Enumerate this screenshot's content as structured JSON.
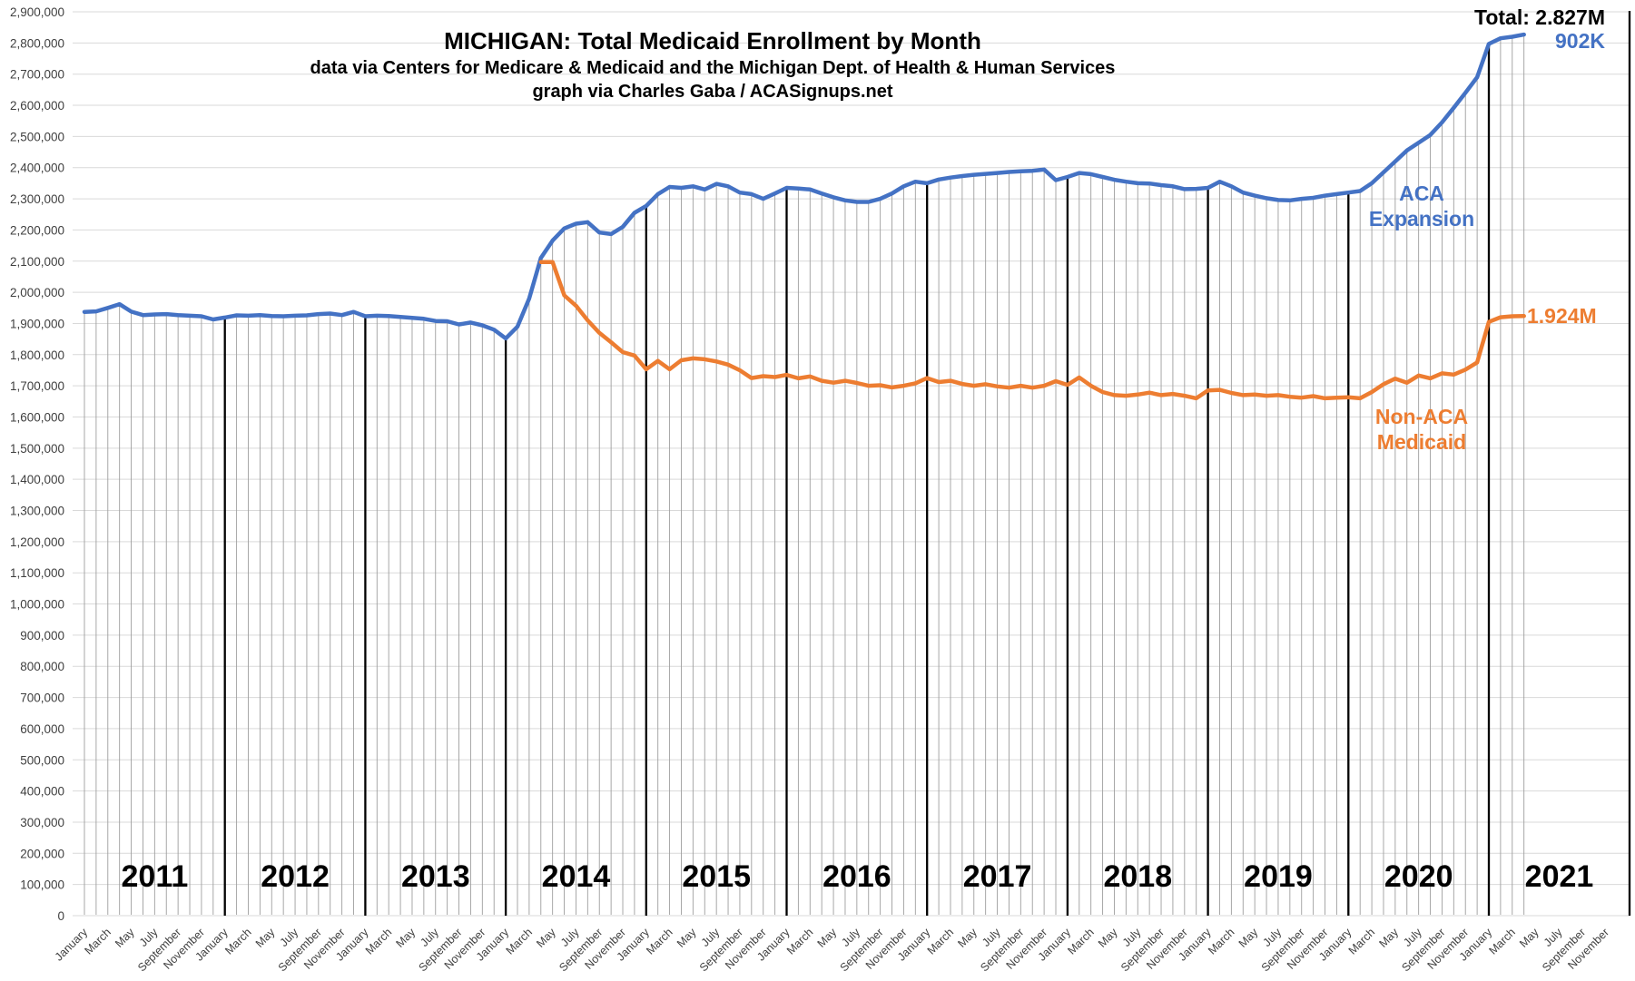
{
  "header": {
    "title": "MICHIGAN: Total Medicaid Enrollment by Month",
    "subtitle1": "data via Centers for Medicare & Medicaid and the Michigan Dept. of Health & Human Services",
    "subtitle2": "graph via Charles Gaba / ACASignups.net"
  },
  "annotations": {
    "total": "Total: 2.827M",
    "expansion_value": "902K",
    "aca_line1": "ACA",
    "aca_line2": "Expansion",
    "nonaca_value": "1.924M",
    "nonaca_line1": "Non-ACA",
    "nonaca_line2": "Medicaid"
  },
  "colors": {
    "total_line": "#4472C4",
    "nonaca_line": "#ED7D31",
    "h_gridline": "#d9d9d9",
    "month_dropline": "#9e9e9e",
    "year_separator": "#000000",
    "axis_label": "#3f3f3f",
    "year_label": "#000000"
  },
  "chart_data": {
    "type": "line",
    "title": "MICHIGAN: Total Medicaid Enrollment by Month",
    "xlabel": "",
    "ylabel": "",
    "x_start": "January 2011",
    "x_end_of_data": "April 2021",
    "months_total": 124,
    "ylim": [
      0,
      2900000
    ],
    "y_tick_step": 100000,
    "grid": true,
    "x_tick_step_months": 2,
    "x_tick_labels": [
      "January",
      "March",
      "May",
      "July",
      "September",
      "November",
      "January",
      "March",
      "May",
      "July",
      "September",
      "November",
      "January",
      "March",
      "May",
      "July",
      "September",
      "November",
      "January",
      "March",
      "May",
      "July",
      "September",
      "November",
      "January",
      "March",
      "May",
      "July",
      "September",
      "November",
      "January",
      "March",
      "May",
      "July",
      "September",
      "November",
      "January",
      "March",
      "May",
      "July",
      "September",
      "November",
      "January",
      "March",
      "May",
      "July",
      "September",
      "November",
      "January",
      "March",
      "May",
      "July",
      "September",
      "November",
      "January",
      "March",
      "May",
      "July",
      "September",
      "November",
      "January",
      "March",
      "May",
      "July",
      "September",
      "November"
    ],
    "year_labels": [
      "2011",
      "2012",
      "2013",
      "2014",
      "2015",
      "2016",
      "2017",
      "2018",
      "2019",
      "2020",
      "2021"
    ],
    "series": [
      {
        "name": "Total Medicaid (incl. ACA Expansion)",
        "label_line1": "ACA",
        "label_line2": "Expansion",
        "color": "#4472C4",
        "values": [
          1937000,
          1939000,
          1950000,
          1962000,
          1938000,
          1927000,
          1929000,
          1930000,
          1927000,
          1925000,
          1923000,
          1913000,
          1919000,
          1926000,
          1925000,
          1927000,
          1924000,
          1923000,
          1925000,
          1926000,
          1930000,
          1932000,
          1927000,
          1937000,
          1923000,
          1925000,
          1924000,
          1921000,
          1918000,
          1915000,
          1908000,
          1907000,
          1897000,
          1903000,
          1894000,
          1880000,
          1852000,
          1890000,
          1980000,
          2110000,
          2166000,
          2205000,
          2220000,
          2225000,
          2192000,
          2187000,
          2210000,
          2255000,
          2277000,
          2315000,
          2338000,
          2335000,
          2340000,
          2330000,
          2348000,
          2340000,
          2320000,
          2315000,
          2300000,
          2317000,
          2335000,
          2333000,
          2330000,
          2317000,
          2305000,
          2295000,
          2290000,
          2290000,
          2300000,
          2317000,
          2340000,
          2355000,
          2350000,
          2362000,
          2368000,
          2373000,
          2377000,
          2380000,
          2383000,
          2386000,
          2388000,
          2390000,
          2394000,
          2360000,
          2370000,
          2383000,
          2379000,
          2370000,
          2361000,
          2355000,
          2350000,
          2349000,
          2344000,
          2340000,
          2331000,
          2332000,
          2335000,
          2355000,
          2340000,
          2320000,
          2310000,
          2302000,
          2296000,
          2295000,
          2300000,
          2303000,
          2310000,
          2315000,
          2320000,
          2325000,
          2350000,
          2385000,
          2420000,
          2455000,
          2480000,
          2505000,
          2545000,
          2592000,
          2640000,
          2690000,
          2797000,
          2815000,
          2820000,
          2827000
        ]
      },
      {
        "name": "Non-ACA Medicaid",
        "label_line1": "Non-ACA",
        "label_line2": "Medicaid",
        "color": "#ED7D31",
        "values": [
          null,
          null,
          null,
          null,
          null,
          null,
          null,
          null,
          null,
          null,
          null,
          null,
          null,
          null,
          null,
          null,
          null,
          null,
          null,
          null,
          null,
          null,
          null,
          null,
          null,
          null,
          null,
          null,
          null,
          null,
          null,
          null,
          null,
          null,
          null,
          null,
          null,
          null,
          null,
          2097000,
          2097000,
          1990000,
          1957000,
          1910000,
          1870000,
          1840000,
          1808000,
          1797000,
          1753000,
          1780000,
          1753000,
          1782000,
          1788000,
          1785000,
          1778000,
          1768000,
          1750000,
          1725000,
          1731000,
          1728000,
          1735000,
          1724000,
          1730000,
          1716000,
          1710000,
          1716000,
          1709000,
          1700000,
          1702000,
          1695000,
          1700000,
          1708000,
          1725000,
          1712000,
          1716000,
          1706000,
          1700000,
          1705000,
          1698000,
          1694000,
          1700000,
          1694000,
          1700000,
          1715000,
          1703000,
          1727000,
          1700000,
          1680000,
          1670000,
          1668000,
          1672000,
          1678000,
          1670000,
          1674000,
          1668000,
          1660000,
          1685000,
          1687000,
          1677000,
          1670000,
          1672000,
          1668000,
          1670000,
          1665000,
          1662000,
          1667000,
          1660000,
          1662000,
          1663000,
          1660000,
          1680000,
          1705000,
          1723000,
          1710000,
          1733000,
          1724000,
          1740000,
          1736000,
          1752000,
          1775000,
          1905000,
          1920000,
          1923000,
          1924000
        ]
      }
    ],
    "end_values": {
      "total": "2.827M",
      "aca_expansion": "902K",
      "non_aca": "1.924M"
    },
    "legend_position": "annotations-on-chart"
  }
}
